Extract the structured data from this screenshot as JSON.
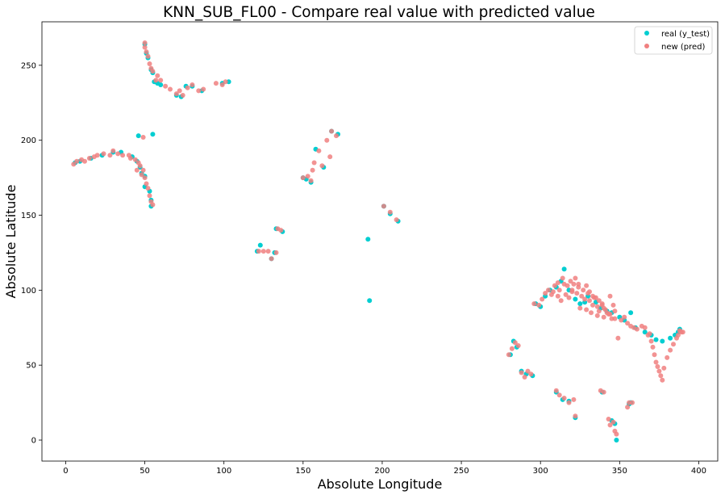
{
  "chart_data": {
    "type": "scatter",
    "title": "KNN_SUB_FL00 - Compare real value with predicted value",
    "xlabel": "Absolute Longitude",
    "ylabel": "Absolute Latitude",
    "xlim": [
      -15,
      412
    ],
    "ylim": [
      -14,
      279
    ],
    "xticks": [
      0,
      50,
      100,
      150,
      200,
      250,
      300,
      350,
      400
    ],
    "yticks": [
      0,
      50,
      100,
      150,
      200,
      250
    ],
    "grid": false,
    "legend_position": "top-right",
    "series": [
      {
        "name": "real (y_test)",
        "color": "#00ced1",
        "points": [
          [
            50,
            264
          ],
          [
            51,
            258
          ],
          [
            52,
            255
          ],
          [
            54,
            247
          ],
          [
            55,
            245
          ],
          [
            56,
            239
          ],
          [
            58,
            238
          ],
          [
            60,
            237
          ],
          [
            70,
            230
          ],
          [
            73,
            229
          ],
          [
            76,
            236
          ],
          [
            80,
            236
          ],
          [
            86,
            233
          ],
          [
            99,
            238
          ],
          [
            103,
            239
          ],
          [
            6,
            185
          ],
          [
            9,
            186
          ],
          [
            16,
            188
          ],
          [
            23,
            190
          ],
          [
            30,
            192
          ],
          [
            35,
            192
          ],
          [
            42,
            189
          ],
          [
            45,
            186
          ],
          [
            47,
            182
          ],
          [
            48,
            178
          ],
          [
            50,
            176
          ],
          [
            50,
            169
          ],
          [
            53,
            166
          ],
          [
            54,
            160
          ],
          [
            54,
            156
          ],
          [
            46,
            203
          ],
          [
            55,
            204
          ],
          [
            121,
            126
          ],
          [
            123,
            130
          ],
          [
            130,
            121
          ],
          [
            132,
            125
          ],
          [
            133,
            141
          ],
          [
            137,
            139
          ],
          [
            150,
            175
          ],
          [
            152,
            174
          ],
          [
            155,
            172
          ],
          [
            158,
            194
          ],
          [
            163,
            182
          ],
          [
            168,
            206
          ],
          [
            172,
            204
          ],
          [
            201,
            156
          ],
          [
            205,
            151
          ],
          [
            210,
            146
          ],
          [
            191,
            134
          ],
          [
            192,
            93
          ],
          [
            297,
            91
          ],
          [
            300,
            89
          ],
          [
            303,
            96
          ],
          [
            306,
            100
          ],
          [
            310,
            102
          ],
          [
            313,
            106
          ],
          [
            315,
            114
          ],
          [
            318,
            100
          ],
          [
            322,
            94
          ],
          [
            325,
            91
          ],
          [
            328,
            92
          ],
          [
            330,
            96
          ],
          [
            335,
            92
          ],
          [
            338,
            88
          ],
          [
            342,
            86
          ],
          [
            345,
            85
          ],
          [
            350,
            82
          ],
          [
            353,
            80
          ],
          [
            357,
            85
          ],
          [
            360,
            75
          ],
          [
            366,
            72
          ],
          [
            370,
            70
          ],
          [
            373,
            67
          ],
          [
            377,
            66
          ],
          [
            382,
            68
          ],
          [
            385,
            70
          ],
          [
            387,
            72
          ],
          [
            388,
            74
          ],
          [
            281,
            57
          ],
          [
            283,
            66
          ],
          [
            285,
            62
          ],
          [
            288,
            46
          ],
          [
            291,
            44
          ],
          [
            295,
            43
          ],
          [
            310,
            32
          ],
          [
            314,
            27
          ],
          [
            318,
            26
          ],
          [
            322,
            15
          ],
          [
            339,
            32
          ],
          [
            345,
            13
          ],
          [
            347,
            11
          ],
          [
            348,
            0
          ],
          [
            356,
            24
          ],
          [
            357,
            25
          ]
        ]
      },
      {
        "name": "new (pred)",
        "color": "#f08080",
        "points": [
          [
            50,
            265
          ],
          [
            50,
            262
          ],
          [
            51,
            259
          ],
          [
            52,
            256
          ],
          [
            53,
            251
          ],
          [
            54,
            248
          ],
          [
            55,
            246
          ],
          [
            57,
            240
          ],
          [
            58,
            243
          ],
          [
            60,
            240
          ],
          [
            63,
            236
          ],
          [
            66,
            234
          ],
          [
            70,
            231
          ],
          [
            72,
            233
          ],
          [
            74,
            230
          ],
          [
            77,
            235
          ],
          [
            80,
            237
          ],
          [
            84,
            233
          ],
          [
            87,
            234
          ],
          [
            95,
            238
          ],
          [
            99,
            237
          ],
          [
            101,
            239
          ],
          [
            5,
            184
          ],
          [
            7,
            186
          ],
          [
            10,
            187
          ],
          [
            12,
            186
          ],
          [
            15,
            188
          ],
          [
            18,
            189
          ],
          [
            20,
            190
          ],
          [
            24,
            191
          ],
          [
            28,
            190
          ],
          [
            30,
            193
          ],
          [
            33,
            191
          ],
          [
            36,
            190
          ],
          [
            40,
            190
          ],
          [
            41,
            188
          ],
          [
            44,
            187
          ],
          [
            46,
            185
          ],
          [
            47,
            183
          ],
          [
            49,
            180
          ],
          [
            48,
            177
          ],
          [
            50,
            175
          ],
          [
            51,
            171
          ],
          [
            52,
            168
          ],
          [
            53,
            163
          ],
          [
            54,
            159
          ],
          [
            55,
            157
          ],
          [
            45,
            180
          ],
          [
            49,
            202
          ],
          [
            122,
            126
          ],
          [
            125,
            126
          ],
          [
            128,
            126
          ],
          [
            130,
            121
          ],
          [
            133,
            125
          ],
          [
            134,
            141
          ],
          [
            136,
            140
          ],
          [
            150,
            175
          ],
          [
            153,
            176
          ],
          [
            155,
            173
          ],
          [
            156,
            180
          ],
          [
            157,
            185
          ],
          [
            160,
            193
          ],
          [
            162,
            183
          ],
          [
            165,
            200
          ],
          [
            167,
            189
          ],
          [
            168,
            206
          ],
          [
            171,
            203
          ],
          [
            201,
            156
          ],
          [
            205,
            152
          ],
          [
            209,
            147
          ],
          [
            296,
            91
          ],
          [
            299,
            90
          ],
          [
            301,
            94
          ],
          [
            303,
            98
          ],
          [
            305,
            100
          ],
          [
            307,
            97
          ],
          [
            309,
            103
          ],
          [
            311,
            105
          ],
          [
            312,
            100
          ],
          [
            314,
            108
          ],
          [
            315,
            104
          ],
          [
            317,
            103
          ],
          [
            319,
            106
          ],
          [
            320,
            100
          ],
          [
            321,
            104
          ],
          [
            323,
            98
          ],
          [
            324,
            102
          ],
          [
            326,
            96
          ],
          [
            328,
            94
          ],
          [
            330,
            98
          ],
          [
            331,
            93
          ],
          [
            333,
            90
          ],
          [
            334,
            95
          ],
          [
            336,
            89
          ],
          [
            337,
            86
          ],
          [
            339,
            91
          ],
          [
            340,
            88
          ],
          [
            342,
            85
          ],
          [
            344,
            84
          ],
          [
            346,
            90
          ],
          [
            347,
            86
          ],
          [
            349,
            68
          ],
          [
            351,
            80
          ],
          [
            353,
            82
          ],
          [
            355,
            78
          ],
          [
            357,
            76
          ],
          [
            359,
            75
          ],
          [
            361,
            74
          ],
          [
            364,
            76
          ],
          [
            366,
            75
          ],
          [
            368,
            70
          ],
          [
            369,
            71
          ],
          [
            370,
            66
          ],
          [
            371,
            62
          ],
          [
            372,
            57
          ],
          [
            373,
            52
          ],
          [
            374,
            49
          ],
          [
            375,
            46
          ],
          [
            376,
            43
          ],
          [
            377,
            40
          ],
          [
            378,
            48
          ],
          [
            380,
            55
          ],
          [
            382,
            60
          ],
          [
            384,
            64
          ],
          [
            386,
            68
          ],
          [
            387,
            70
          ],
          [
            388,
            73
          ],
          [
            389,
            72
          ],
          [
            390,
            72
          ],
          [
            316,
            97
          ],
          [
            318,
            95
          ],
          [
            320,
            99
          ],
          [
            322,
            108
          ],
          [
            324,
            104
          ],
          [
            327,
            100
          ],
          [
            329,
            103
          ],
          [
            331,
            99
          ],
          [
            333,
            96
          ],
          [
            335,
            95
          ],
          [
            337,
            93
          ],
          [
            339,
            90
          ],
          [
            341,
            87
          ],
          [
            343,
            84
          ],
          [
            345,
            81
          ],
          [
            347,
            81
          ],
          [
            344,
            96
          ],
          [
            308,
            99
          ],
          [
            311,
            96
          ],
          [
            313,
            93
          ],
          [
            325,
            88
          ],
          [
            329,
            87
          ],
          [
            332,
            85
          ],
          [
            336,
            83
          ],
          [
            340,
            82
          ],
          [
            280,
            57
          ],
          [
            282,
            61
          ],
          [
            284,
            65
          ],
          [
            286,
            63
          ],
          [
            288,
            45
          ],
          [
            290,
            42
          ],
          [
            292,
            46
          ],
          [
            294,
            44
          ],
          [
            310,
            33
          ],
          [
            312,
            30
          ],
          [
            315,
            28
          ],
          [
            318,
            25
          ],
          [
            321,
            27
          ],
          [
            322,
            16
          ],
          [
            338,
            33
          ],
          [
            340,
            32
          ],
          [
            343,
            14
          ],
          [
            344,
            10
          ],
          [
            346,
            12
          ],
          [
            347,
            6
          ],
          [
            348,
            4
          ],
          [
            355,
            22
          ],
          [
            356,
            25
          ],
          [
            358,
            25
          ]
        ]
      }
    ]
  }
}
